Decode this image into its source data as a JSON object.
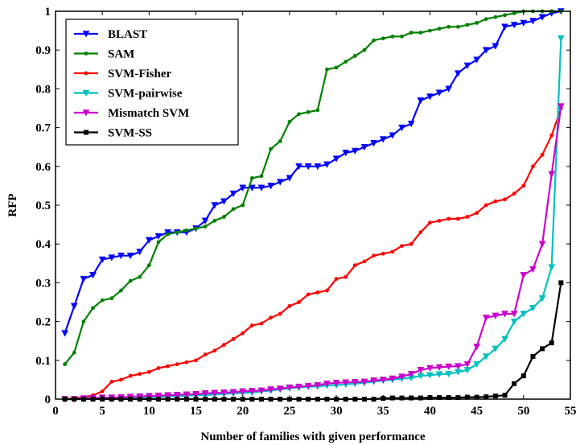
{
  "chart_data": {
    "type": "line",
    "xlabel": "Number of families with given performance",
    "ylabel": "RFP",
    "xlim": [
      0,
      55
    ],
    "ylim": [
      0,
      1
    ],
    "xticks": [
      0,
      5,
      10,
      15,
      20,
      25,
      30,
      35,
      40,
      45,
      50,
      55
    ],
    "yticks": [
      0,
      0.1,
      0.2,
      0.3,
      0.4,
      0.5,
      0.6,
      0.7,
      0.8,
      0.9,
      1
    ],
    "xtick_labels": [
      "0",
      "5",
      "10",
      "15",
      "20",
      "25",
      "30",
      "35",
      "40",
      "45",
      "50",
      "55"
    ],
    "ytick_labels": [
      "0",
      "0.1",
      "0.2",
      "0.3",
      "0.4",
      "0.5",
      "0.6",
      "0.7",
      "0.8",
      "0.9",
      "1"
    ],
    "grid": false,
    "legend_position": "top-left",
    "series": [
      {
        "name": "BLAST",
        "color": "#0000ff",
        "marker": "triangle-down",
        "x": [
          1,
          2,
          3,
          4,
          5,
          6,
          7,
          8,
          9,
          10,
          11,
          12,
          13,
          14,
          15,
          16,
          17,
          18,
          19,
          20,
          21,
          22,
          23,
          24,
          25,
          26,
          27,
          28,
          29,
          30,
          31,
          32,
          33,
          34,
          35,
          36,
          37,
          38,
          39,
          40,
          41,
          42,
          43,
          44,
          45,
          46,
          47,
          48,
          49,
          50,
          51,
          52,
          53,
          54
        ],
        "y": [
          0.17,
          0.24,
          0.31,
          0.32,
          0.36,
          0.365,
          0.37,
          0.37,
          0.38,
          0.41,
          0.42,
          0.43,
          0.43,
          0.43,
          0.44,
          0.46,
          0.5,
          0.51,
          0.53,
          0.545,
          0.545,
          0.545,
          0.55,
          0.56,
          0.57,
          0.6,
          0.6,
          0.6,
          0.605,
          0.62,
          0.635,
          0.64,
          0.65,
          0.66,
          0.67,
          0.68,
          0.7,
          0.71,
          0.77,
          0.78,
          0.79,
          0.8,
          0.84,
          0.86,
          0.875,
          0.9,
          0.91,
          0.96,
          0.965,
          0.97,
          0.975,
          0.985,
          0.995,
          1.0
        ]
      },
      {
        "name": "SAM",
        "color": "#008000",
        "marker": "dot",
        "x": [
          1,
          2,
          3,
          4,
          5,
          6,
          7,
          8,
          9,
          10,
          11,
          12,
          13,
          14,
          15,
          16,
          17,
          18,
          19,
          20,
          21,
          22,
          23,
          24,
          25,
          26,
          27,
          28,
          29,
          30,
          31,
          32,
          33,
          34,
          35,
          36,
          37,
          38,
          39,
          40,
          41,
          42,
          43,
          44,
          45,
          46,
          47,
          48,
          49,
          50,
          51,
          52,
          53,
          54
        ],
        "y": [
          0.09,
          0.12,
          0.2,
          0.235,
          0.255,
          0.26,
          0.28,
          0.305,
          0.315,
          0.345,
          0.405,
          0.425,
          0.43,
          0.435,
          0.44,
          0.445,
          0.46,
          0.47,
          0.49,
          0.5,
          0.57,
          0.575,
          0.645,
          0.665,
          0.715,
          0.735,
          0.74,
          0.745,
          0.85,
          0.855,
          0.87,
          0.885,
          0.9,
          0.925,
          0.93,
          0.935,
          0.935,
          0.945,
          0.945,
          0.95,
          0.955,
          0.96,
          0.96,
          0.965,
          0.97,
          0.98,
          0.985,
          0.99,
          0.995,
          1.0,
          1.0,
          1.0,
          1.0,
          1.0
        ]
      },
      {
        "name": "SVM-Fisher",
        "color": "#ff0000",
        "marker": "dot",
        "x": [
          1,
          2,
          3,
          4,
          5,
          6,
          7,
          8,
          9,
          10,
          11,
          12,
          13,
          14,
          15,
          16,
          17,
          18,
          19,
          20,
          21,
          22,
          23,
          24,
          25,
          26,
          27,
          28,
          29,
          30,
          31,
          32,
          33,
          34,
          35,
          36,
          37,
          38,
          39,
          40,
          41,
          42,
          43,
          44,
          45,
          46,
          47,
          48,
          49,
          50,
          51,
          52,
          53,
          54
        ],
        "y": [
          0.0,
          0.002,
          0.005,
          0.01,
          0.02,
          0.045,
          0.05,
          0.06,
          0.065,
          0.07,
          0.08,
          0.085,
          0.09,
          0.095,
          0.1,
          0.115,
          0.125,
          0.14,
          0.155,
          0.17,
          0.19,
          0.195,
          0.21,
          0.22,
          0.24,
          0.25,
          0.27,
          0.275,
          0.28,
          0.31,
          0.315,
          0.345,
          0.355,
          0.37,
          0.375,
          0.38,
          0.395,
          0.4,
          0.43,
          0.455,
          0.46,
          0.465,
          0.465,
          0.47,
          0.48,
          0.5,
          0.51,
          0.515,
          0.53,
          0.55,
          0.6,
          0.63,
          0.68,
          0.75
        ]
      },
      {
        "name": "SVM-pairwise",
        "color": "#00c0c0",
        "marker": "triangle-down",
        "x": [
          1,
          2,
          3,
          4,
          5,
          6,
          7,
          8,
          9,
          10,
          11,
          12,
          13,
          14,
          15,
          16,
          17,
          18,
          19,
          20,
          21,
          22,
          23,
          24,
          25,
          26,
          27,
          28,
          29,
          30,
          31,
          32,
          33,
          34,
          35,
          36,
          37,
          38,
          39,
          40,
          41,
          42,
          43,
          44,
          45,
          46,
          47,
          48,
          49,
          50,
          51,
          52,
          53,
          54
        ],
        "y": [
          0.0,
          0.0,
          0.0,
          0.002,
          0.003,
          0.003,
          0.003,
          0.004,
          0.005,
          0.005,
          0.006,
          0.007,
          0.008,
          0.009,
          0.01,
          0.01,
          0.012,
          0.013,
          0.015,
          0.016,
          0.017,
          0.02,
          0.022,
          0.025,
          0.028,
          0.03,
          0.032,
          0.033,
          0.035,
          0.036,
          0.038,
          0.04,
          0.042,
          0.045,
          0.048,
          0.05,
          0.053,
          0.055,
          0.06,
          0.062,
          0.064,
          0.065,
          0.07,
          0.075,
          0.09,
          0.11,
          0.13,
          0.155,
          0.2,
          0.22,
          0.235,
          0.26,
          0.34,
          0.93
        ]
      },
      {
        "name": "Mismatch SVM",
        "color": "#cc00cc",
        "marker": "triangle-down",
        "x": [
          1,
          2,
          3,
          4,
          5,
          6,
          7,
          8,
          9,
          10,
          11,
          12,
          13,
          14,
          15,
          16,
          17,
          18,
          19,
          20,
          21,
          22,
          23,
          24,
          25,
          26,
          27,
          28,
          29,
          30,
          31,
          32,
          33,
          34,
          35,
          36,
          37,
          38,
          39,
          40,
          41,
          42,
          43,
          44,
          45,
          46,
          47,
          48,
          49,
          50,
          51,
          52,
          53,
          54
        ],
        "y": [
          0.0,
          0.0,
          0.002,
          0.003,
          0.004,
          0.004,
          0.005,
          0.006,
          0.007,
          0.008,
          0.009,
          0.01,
          0.011,
          0.012,
          0.013,
          0.015,
          0.016,
          0.017,
          0.018,
          0.02,
          0.021,
          0.022,
          0.025,
          0.027,
          0.03,
          0.032,
          0.034,
          0.036,
          0.04,
          0.042,
          0.043,
          0.044,
          0.045,
          0.048,
          0.05,
          0.053,
          0.058,
          0.065,
          0.075,
          0.08,
          0.082,
          0.084,
          0.085,
          0.09,
          0.135,
          0.21,
          0.215,
          0.22,
          0.22,
          0.32,
          0.335,
          0.4,
          0.58,
          0.755
        ]
      },
      {
        "name": "SVM-SS",
        "color": "#000000",
        "marker": "square",
        "x": [
          1,
          2,
          3,
          4,
          5,
          6,
          7,
          8,
          9,
          10,
          11,
          12,
          13,
          14,
          15,
          16,
          17,
          18,
          19,
          20,
          21,
          22,
          23,
          24,
          25,
          26,
          27,
          28,
          29,
          30,
          31,
          32,
          33,
          34,
          35,
          36,
          37,
          38,
          39,
          40,
          41,
          42,
          43,
          44,
          45,
          46,
          47,
          48,
          49,
          50,
          51,
          52,
          53,
          54
        ],
        "y": [
          0.0,
          0.0,
          0.0,
          0.0,
          0.0,
          0.0,
          0.0,
          0.0,
          0.0,
          0.0,
          0.0,
          0.0,
          0.0,
          0.0,
          0.0,
          0.0,
          0.0,
          0.0,
          0.0,
          0.0,
          0.0,
          0.0,
          0.0,
          0.0,
          0.0,
          0.0,
          0.0,
          0.0,
          0.0,
          0.0,
          0.0,
          0.0,
          0.0,
          0.0,
          0.002,
          0.003,
          0.003,
          0.003,
          0.003,
          0.004,
          0.004,
          0.004,
          0.004,
          0.005,
          0.005,
          0.006,
          0.008,
          0.01,
          0.04,
          0.06,
          0.11,
          0.13,
          0.145,
          0.3
        ]
      }
    ]
  }
}
